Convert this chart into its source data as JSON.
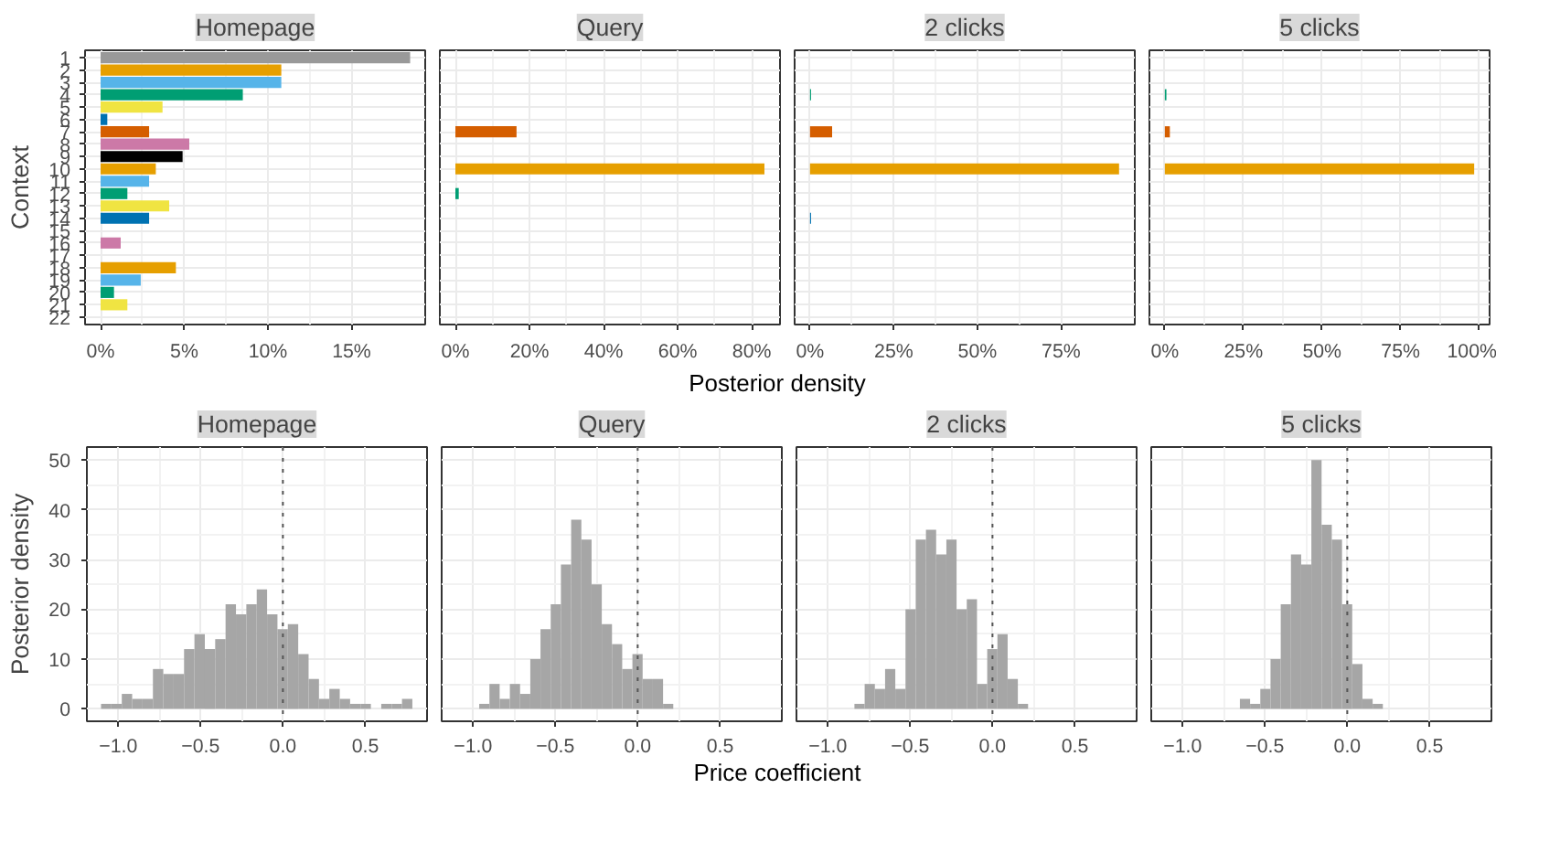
{
  "chart_data": [
    {
      "type": "bar",
      "orientation": "horizontal",
      "title": "Homepage",
      "ylabel": "Context",
      "grid": true,
      "categories": [
        "1",
        "2",
        "3",
        "4",
        "5",
        "6",
        "7",
        "8",
        "9",
        "10",
        "11",
        "12",
        "13",
        "14",
        "15",
        "16",
        "17",
        "18",
        "19",
        "20",
        "21",
        "22"
      ],
      "values": [
        18.5,
        10.8,
        10.8,
        8.5,
        3.7,
        0.4,
        2.9,
        5.3,
        4.9,
        3.3,
        2.9,
        1.6,
        4.1,
        2.9,
        0,
        1.2,
        0,
        4.5,
        2.4,
        0.8,
        1.6,
        0
      ],
      "colors": [
        "#999999",
        "#e69f00",
        "#56b4e9",
        "#009e73",
        "#f0e442",
        "#0072b2",
        "#d55e00",
        "#cc79a7",
        "#000000",
        "#e69f00",
        "#56b4e9",
        "#009e73",
        "#f0e442",
        "#0072b2",
        "#d55e00",
        "#cc79a7",
        "#000000",
        "#e69f00",
        "#56b4e9",
        "#009e73",
        "#f0e442",
        "#0072b2"
      ],
      "xlim": [
        -0.93,
        19.4
      ],
      "xticks": [
        {
          "value": 0,
          "label": "0%"
        },
        {
          "value": 5,
          "label": "5%"
        },
        {
          "value": 10,
          "label": "10%"
        },
        {
          "value": 15,
          "label": "15%"
        }
      ]
    },
    {
      "type": "bar",
      "orientation": "horizontal",
      "title": "Query",
      "grid": true,
      "tick_labels": "x",
      "categories": [
        "1",
        "2",
        "3",
        "4",
        "5",
        "6",
        "7",
        "8",
        "9",
        "10",
        "11",
        "12",
        "13",
        "14",
        "15",
        "16",
        "17",
        "18",
        "19",
        "20",
        "21",
        "22"
      ],
      "values": [
        0,
        0,
        0,
        0,
        0,
        0,
        16.5,
        0,
        0,
        83.4,
        0,
        0.9,
        0,
        0,
        0,
        0,
        0,
        0,
        0,
        0,
        0,
        0
      ],
      "colors": [
        "#999999",
        "#e69f00",
        "#56b4e9",
        "#009e73",
        "#f0e442",
        "#0072b2",
        "#d55e00",
        "#cc79a7",
        "#000000",
        "#e69f00",
        "#56b4e9",
        "#009e73",
        "#f0e442",
        "#0072b2",
        "#d55e00",
        "#cc79a7",
        "#000000",
        "#e69f00",
        "#56b4e9",
        "#009e73",
        "#f0e442",
        "#0072b2"
      ],
      "xlim": [
        -4.2,
        87.6
      ],
      "xticks": [
        {
          "value": 0,
          "label": "0%"
        },
        {
          "value": 20,
          "label": "20%"
        },
        {
          "value": 40,
          "label": "40%"
        },
        {
          "value": 60,
          "label": "60%"
        },
        {
          "value": 80,
          "label": "80%"
        }
      ]
    },
    {
      "type": "bar",
      "orientation": "horizontal",
      "title": "2 clicks",
      "xlabel": "Posterior density",
      "grid": true,
      "tick_labels": "x",
      "categories": [
        "1",
        "2",
        "3",
        "4",
        "5",
        "6",
        "7",
        "8",
        "9",
        "10",
        "11",
        "12",
        "13",
        "14",
        "15",
        "16",
        "17",
        "18",
        "19",
        "20",
        "21",
        "22"
      ],
      "values": [
        0,
        0,
        0,
        0.3,
        0,
        0,
        6.6,
        0,
        0,
        92.3,
        0,
        0,
        0,
        0.3,
        0,
        0,
        0,
        0,
        0,
        0,
        0,
        0
      ],
      "colors": [
        "#999999",
        "#e69f00",
        "#56b4e9",
        "#009e73",
        "#f0e442",
        "#0072b2",
        "#d55e00",
        "#cc79a7",
        "#000000",
        "#e69f00",
        "#56b4e9",
        "#009e73",
        "#f0e442",
        "#0072b2",
        "#d55e00",
        "#cc79a7",
        "#000000",
        "#e69f00",
        "#56b4e9",
        "#009e73",
        "#f0e442",
        "#0072b2"
      ],
      "xlim": [
        -4.6,
        97
      ],
      "xticks": [
        {
          "value": 0,
          "label": "0%"
        },
        {
          "value": 25,
          "label": "25%"
        },
        {
          "value": 50,
          "label": "50%"
        },
        {
          "value": 75,
          "label": "75%"
        }
      ]
    },
    {
      "type": "bar",
      "orientation": "horizontal",
      "title": "5 clicks",
      "grid": true,
      "tick_labels": "x",
      "categories": [
        "1",
        "2",
        "3",
        "4",
        "5",
        "6",
        "7",
        "8",
        "9",
        "10",
        "11",
        "12",
        "13",
        "14",
        "15",
        "16",
        "17",
        "18",
        "19",
        "20",
        "21",
        "22"
      ],
      "values": [
        0,
        0,
        0,
        0.5,
        0,
        0,
        1.6,
        0,
        0,
        98.4,
        0,
        0,
        0,
        0,
        0,
        0,
        0,
        0,
        0,
        0,
        0,
        0
      ],
      "colors": [
        "#999999",
        "#e69f00",
        "#56b4e9",
        "#009e73",
        "#f0e442",
        "#0072b2",
        "#d55e00",
        "#cc79a7",
        "#000000",
        "#e69f00",
        "#56b4e9",
        "#009e73",
        "#f0e442",
        "#0072b2",
        "#d55e00",
        "#cc79a7",
        "#000000",
        "#e69f00",
        "#56b4e9",
        "#009e73",
        "#f0e442",
        "#0072b2"
      ],
      "xlim": [
        -4.9,
        103.3
      ],
      "xticks": [
        {
          "value": 0,
          "label": "0%"
        },
        {
          "value": 25,
          "label": "25%"
        },
        {
          "value": 50,
          "label": "50%"
        },
        {
          "value": 75,
          "label": "75%"
        },
        {
          "value": 100,
          "label": "100%"
        }
      ]
    },
    {
      "type": "histogram",
      "title": "Homepage",
      "ylabel": "Posterior density",
      "grid": true,
      "color": "#a6a6a6",
      "bins": [
        -1.104,
        -1.041,
        -0.978,
        -0.915,
        -0.852,
        -0.789,
        -0.726,
        -0.663,
        -0.6,
        -0.537,
        -0.474,
        -0.411,
        -0.348,
        -0.285,
        -0.222,
        -0.159,
        -0.096,
        -0.033,
        0.03,
        0.093,
        0.156,
        0.219,
        0.282,
        0.345,
        0.408,
        0.471,
        0.534,
        0.597,
        0.66,
        0.723,
        0.786
      ],
      "values": [
        1,
        1,
        3,
        2,
        2,
        8,
        7,
        7,
        12,
        15,
        12,
        14,
        21,
        19,
        21,
        24,
        19,
        16,
        17,
        11,
        6,
        2,
        4,
        2,
        1,
        1,
        0,
        1,
        1,
        2
      ],
      "xlim": [
        -1.19,
        0.875
      ],
      "ylim": [
        -2.5,
        52.6
      ],
      "xticks": [
        {
          "value": -1,
          "label": "−1.0"
        },
        {
          "value": -0.5,
          "label": "−0.5"
        },
        {
          "value": 0,
          "label": "0.0"
        },
        {
          "value": 0.5,
          "label": "0.5"
        }
      ],
      "yticks": [
        0,
        10,
        20,
        30,
        40,
        50
      ],
      "ref_lines": [
        {
          "axis": "x",
          "value": 0,
          "color": "#555555",
          "line_style": "dotted"
        }
      ]
    },
    {
      "type": "histogram",
      "title": "Query",
      "grid": true,
      "color": "#a6a6a6",
      "tick_labels": "x",
      "bins": [
        -1.086,
        -1.024,
        -0.962,
        -0.9,
        -0.838,
        -0.776,
        -0.714,
        -0.652,
        -0.59,
        -0.528,
        -0.466,
        -0.404,
        -0.342,
        -0.28,
        -0.218,
        -0.156,
        -0.094,
        -0.032,
        0.03,
        0.092,
        0.154,
        0.216
      ],
      "values": [
        0,
        0,
        1,
        5,
        2,
        5,
        3,
        10,
        16,
        21,
        29,
        38,
        34,
        25,
        17,
        13,
        8,
        11,
        6,
        6,
        1
      ],
      "xlim": [
        -1.19,
        0.875
      ],
      "ylim": [
        -2.5,
        52.6
      ],
      "xticks": [
        {
          "value": -1,
          "label": "−1.0"
        },
        {
          "value": -0.5,
          "label": "−0.5"
        },
        {
          "value": 0,
          "label": "0.0"
        },
        {
          "value": 0.5,
          "label": "0.5"
        }
      ],
      "yticks": [
        0,
        10,
        20,
        30,
        40,
        50
      ],
      "ref_lines": [
        {
          "axis": "x",
          "value": 0,
          "color": "#555555",
          "line_style": "dotted"
        }
      ]
    },
    {
      "type": "histogram",
      "title": "2 clicks",
      "xlabel": "Price coefficient",
      "grid": true,
      "color": "#a6a6a6",
      "tick_labels": "x",
      "bins": [
        -1.086,
        -1.024,
        -0.962,
        -0.9,
        -0.838,
        -0.776,
        -0.714,
        -0.652,
        -0.59,
        -0.528,
        -0.466,
        -0.404,
        -0.342,
        -0.28,
        -0.218,
        -0.156,
        -0.094,
        -0.032,
        0.03,
        0.092,
        0.154,
        0.216
      ],
      "values": [
        0,
        0,
        0,
        0,
        1,
        5,
        4,
        8,
        4,
        20,
        34,
        36,
        31,
        34,
        20,
        22,
        5,
        12,
        15,
        6,
        1
      ],
      "xlim": [
        -1.19,
        0.875
      ],
      "ylim": [
        -2.5,
        52.6
      ],
      "xticks": [
        {
          "value": -1,
          "label": "−1.0"
        },
        {
          "value": -0.5,
          "label": "−0.5"
        },
        {
          "value": 0,
          "label": "0.0"
        },
        {
          "value": 0.5,
          "label": "0.5"
        }
      ],
      "yticks": [
        0,
        10,
        20,
        30,
        40,
        50
      ],
      "ref_lines": [
        {
          "axis": "x",
          "value": 0,
          "color": "#555555",
          "line_style": "dotted"
        }
      ]
    },
    {
      "type": "histogram",
      "title": "5 clicks",
      "grid": true,
      "color": "#a6a6a6",
      "tick_labels": "x",
      "bins": [
        -1.086,
        -1.024,
        -0.962,
        -0.9,
        -0.838,
        -0.776,
        -0.714,
        -0.652,
        -0.59,
        -0.528,
        -0.466,
        -0.404,
        -0.342,
        -0.28,
        -0.218,
        -0.156,
        -0.094,
        -0.032,
        0.03,
        0.092,
        0.154,
        0.216
      ],
      "values": [
        0,
        0,
        0,
        0,
        0,
        0,
        0,
        2,
        1,
        4,
        10,
        21,
        31,
        29,
        50,
        37,
        34,
        21,
        9,
        2,
        1
      ],
      "xlim": [
        -1.19,
        0.875
      ],
      "ylim": [
        -2.5,
        52.6
      ],
      "xticks": [
        {
          "value": -1,
          "label": "−1.0"
        },
        {
          "value": -0.5,
          "label": "−0.5"
        },
        {
          "value": 0,
          "label": "0.0"
        },
        {
          "value": 0.5,
          "label": "0.5"
        }
      ],
      "yticks": [
        0,
        10,
        20,
        30,
        40,
        50
      ],
      "ref_lines": [
        {
          "axis": "x",
          "value": 0,
          "color": "#555555",
          "line_style": "dotted"
        }
      ]
    }
  ]
}
